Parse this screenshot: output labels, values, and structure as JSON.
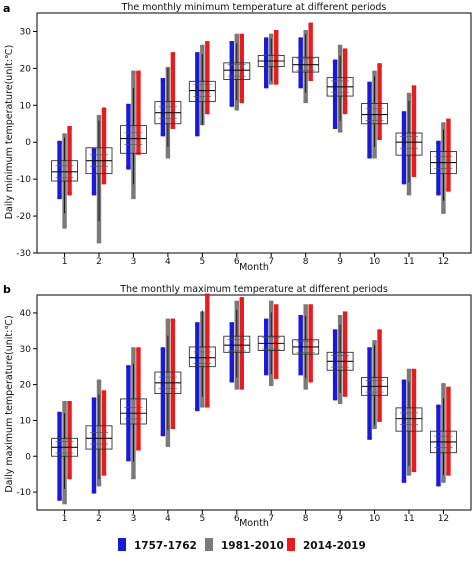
{
  "colors": {
    "p1": "#1a1ad6",
    "p2": "#7a7a7a",
    "p3": "#e81c1c"
  },
  "legend": [
    {
      "label": "1757-1762",
      "color": "#1a1ad6"
    },
    {
      "label": "1981-2010",
      "color": "#7a7a7a"
    },
    {
      "label": "2014-2019",
      "color": "#e81c1c"
    }
  ],
  "chart_data": [
    {
      "panel_label": "a",
      "type": "box",
      "title": "The monthly minimum temperature at different periods",
      "xlabel": "Month",
      "ylabel": "Daily minimum temperature(unit:℃)",
      "ylim": [
        -30,
        35
      ],
      "yticks": [
        -30,
        -20,
        -10,
        0,
        10,
        20,
        30
      ],
      "categories": [
        "1",
        "2",
        "3",
        "4",
        "5",
        "6",
        "7",
        "8",
        "9",
        "10",
        "11",
        "12"
      ],
      "box_median": [
        -8,
        -5,
        1,
        8,
        14,
        19.5,
        22,
        21,
        15,
        7.5,
        0,
        -5.5
      ],
      "box_q1": [
        -10.5,
        -8.5,
        -3,
        5,
        11,
        17,
        20.5,
        19,
        12.5,
        5,
        -3.5,
        -8.5
      ],
      "box_q3": [
        -5,
        -1.5,
        4.5,
        11,
        16.5,
        21.5,
        23.5,
        23,
        17.5,
        10.5,
        2.5,
        -2.5
      ],
      "series": [
        {
          "name": "1757-1762",
          "min": [
            -15,
            -14,
            -7,
            2,
            2,
            10,
            15,
            15,
            4,
            -4,
            -11,
            -14
          ],
          "max": [
            0,
            -2,
            10,
            17,
            24,
            27,
            28,
            28,
            22,
            16,
            8,
            0
          ]
        },
        {
          "name": "1981-2010",
          "min": [
            -23,
            -27,
            -15,
            -4,
            5,
            9,
            16,
            11,
            3,
            -4,
            -14,
            -19
          ],
          "max": [
            2,
            7,
            19,
            20,
            26,
            29,
            29,
            30,
            26,
            19,
            13,
            5
          ]
        },
        {
          "name": "2014-2019",
          "min": [
            -14,
            -11,
            -3,
            4,
            8,
            11,
            16,
            17,
            8,
            1,
            -9,
            -13
          ],
          "max": [
            4,
            9,
            19,
            24,
            27,
            29,
            30,
            32,
            25,
            21,
            15,
            6
          ]
        }
      ]
    },
    {
      "panel_label": "b",
      "type": "box",
      "title": "The monthly maximum temperature at different periods",
      "xlabel": "Month",
      "ylabel": "Daily maximum temperature(unit:℃)",
      "ylim": [
        -15,
        45
      ],
      "yticks": [
        -10,
        0,
        10,
        20,
        30,
        40
      ],
      "categories": [
        "1",
        "2",
        "3",
        "4",
        "5",
        "6",
        "7",
        "8",
        "9",
        "10",
        "11",
        "12"
      ],
      "box_median": [
        2.5,
        5,
        12,
        20.5,
        27.5,
        31,
        31.5,
        30.5,
        26.5,
        19.5,
        10.5,
        4
      ],
      "box_q1": [
        0,
        2,
        9,
        17.5,
        25,
        29,
        29.5,
        28.5,
        24,
        17,
        7,
        1
      ],
      "box_q3": [
        5,
        8.5,
        16,
        23.5,
        30.5,
        33.5,
        33.5,
        32.5,
        29,
        22,
        13.5,
        7
      ],
      "series": [
        {
          "name": "1757-1762",
          "min": [
            -12,
            -10,
            -1,
            6,
            13,
            21,
            23,
            23,
            16,
            5,
            -7,
            -8
          ],
          "max": [
            12,
            16,
            25,
            30,
            37,
            37,
            38,
            39,
            35,
            30,
            21,
            14
          ]
        },
        {
          "name": "1981-2010",
          "min": [
            -13,
            -8,
            -6,
            3,
            14,
            19,
            20,
            19,
            15,
            8,
            -5,
            -7
          ],
          "max": [
            15,
            21,
            30,
            38,
            40,
            43,
            43,
            42,
            39,
            32,
            24,
            20
          ]
        },
        {
          "name": "2014-2019",
          "min": [
            -6,
            -5,
            2,
            8,
            14,
            19,
            22,
            21,
            17,
            10,
            -4,
            -5
          ],
          "max": [
            15,
            18,
            30,
            38,
            45,
            44,
            42,
            42,
            40,
            35,
            24,
            19
          ]
        }
      ]
    }
  ]
}
